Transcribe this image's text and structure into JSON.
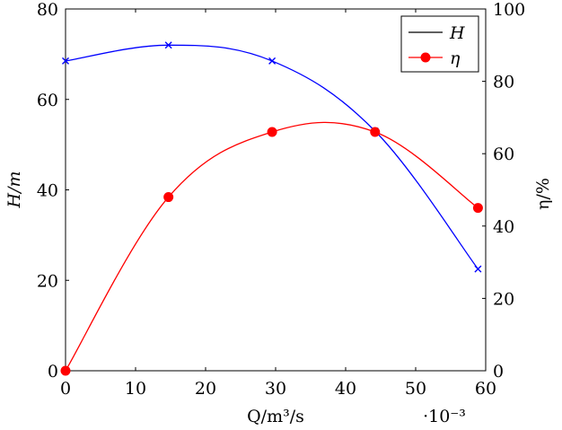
{
  "chart_data": {
    "type": "line",
    "x": [
      0,
      14.7,
      29.5,
      44.2,
      58.9
    ],
    "x_multiplier_label": "·10⁻³",
    "xlabel": "Q/m³/s",
    "ylabel_left": "H/m",
    "ylabel_right": "η/%",
    "xlim": [
      0,
      60
    ],
    "ylim_left": [
      0,
      80
    ],
    "ylim_right": [
      0,
      100
    ],
    "xticks": [
      0,
      10,
      20,
      30,
      40,
      50,
      60
    ],
    "yticks_left": [
      0,
      20,
      40,
      60,
      80
    ],
    "yticks_right": [
      0,
      20,
      40,
      60,
      80,
      100
    ],
    "grid": false,
    "legend_position": "top-right",
    "series": [
      {
        "name": "H",
        "axis": "left",
        "color": "#0000ff",
        "marker": "x",
        "legend_color": "#000000",
        "values": [
          68.5,
          72.0,
          68.5,
          53.0,
          22.5
        ]
      },
      {
        "name": "η",
        "axis": "right",
        "color": "#ff0000",
        "marker": "circle",
        "legend_color": "#ff0000",
        "values": [
          0,
          48,
          66,
          66,
          45
        ]
      }
    ]
  }
}
